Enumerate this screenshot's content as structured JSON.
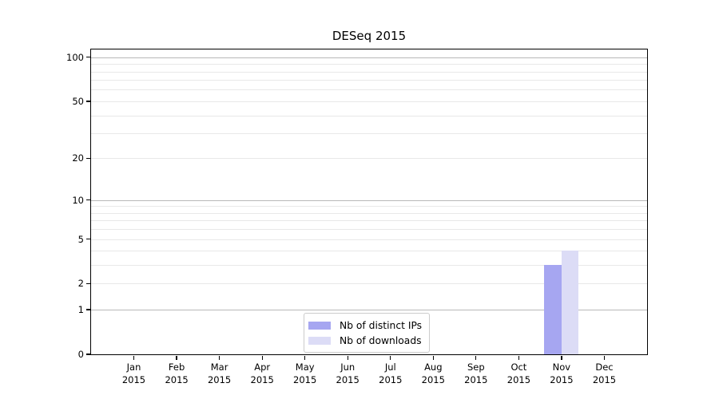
{
  "chart_data": {
    "type": "bar",
    "title": "DESeq 2015",
    "categories": [
      "Jan",
      "Feb",
      "Mar",
      "Apr",
      "May",
      "Jun",
      "Jul",
      "Aug",
      "Sep",
      "Oct",
      "Nov",
      "Dec"
    ],
    "year_label": "2015",
    "series": [
      {
        "name": "Nb of distinct IPs",
        "color": "#a6a6f1",
        "values": [
          0,
          0,
          0,
          0,
          0,
          0,
          0,
          0,
          0,
          0,
          3,
          0
        ]
      },
      {
        "name": "Nb of downloads",
        "color": "#dcdcf6",
        "values": [
          0,
          0,
          0,
          0,
          0,
          0,
          0,
          0,
          0,
          0,
          4,
          0
        ]
      }
    ],
    "y_axis": {
      "scale": "log1p",
      "tick_values": [
        0,
        1,
        2,
        5,
        10,
        20,
        50,
        100
      ],
      "decade_gridlines": [
        1,
        10,
        100
      ],
      "minor_gridlines": [
        3,
        4,
        6,
        7,
        8,
        9,
        30,
        40,
        60,
        70,
        80,
        90
      ],
      "range": [
        0,
        113
      ]
    },
    "legend_position": "bottom-center",
    "grid": true
  },
  "colors": {
    "background": "#ffffff",
    "spine": "#000000",
    "grid_decade": "#b8b8b8",
    "grid_minor": "#e8e8e8",
    "text": "#000000",
    "legend_border": "#cccccc"
  }
}
